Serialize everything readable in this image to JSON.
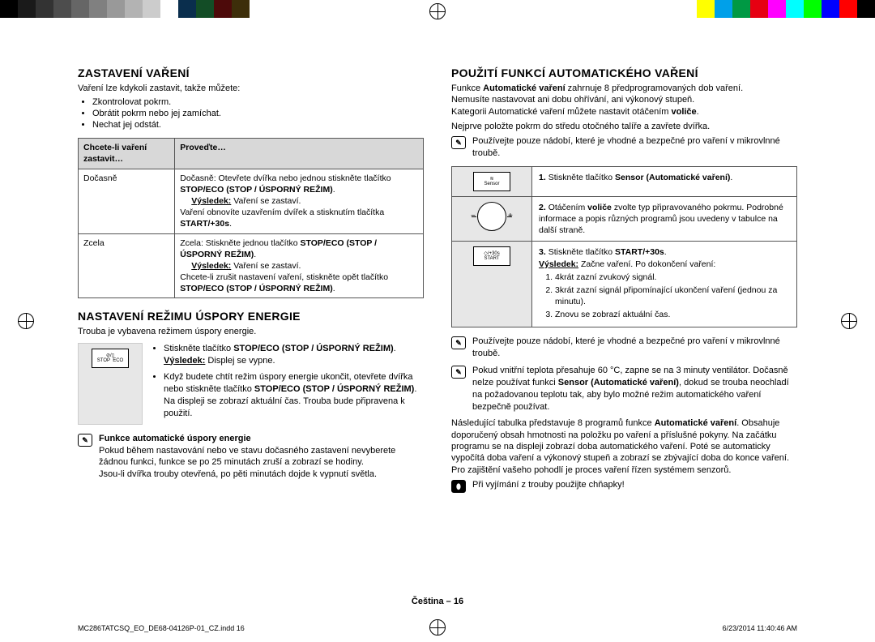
{
  "colorbar": {
    "left": [
      "#000000",
      "#1a1a1a",
      "#333333",
      "#4d4d4d",
      "#666666",
      "#808080",
      "#999999",
      "#b3b3b3",
      "#cccccc",
      "#ffffff",
      "#0a2e4d",
      "#134d26",
      "#4d0a0a",
      "#3d2e0a"
    ],
    "right": [
      "#ffff00",
      "#00a0e9",
      "#009944",
      "#e60012",
      "#ff00ff",
      "#00ffff",
      "#00ff00",
      "#0000ff",
      "#ff0000",
      "#000000"
    ]
  },
  "left": {
    "h1": "ZASTAVENÍ VAŘENÍ",
    "intro": "Vaření lze kdykoli zastavit, takže můžete:",
    "bullets": [
      "Zkontrolovat pokrm.",
      "Obrátit pokrm nebo jej zamíchat.",
      "Nechat jej odstát."
    ],
    "th1": "Chcete-li vaření zastavit…",
    "th2": "Proveďte…",
    "r1c1": "Dočasně",
    "r1c2a": "Dočasně: Otevřete dvířka nebo jednou stiskněte tlačítko ",
    "r1c2b": "STOP/ECO (STOP / ÚSPORNÝ REŽIM)",
    "r1res": "Výsledek:",
    "r1resv": " Vaření se zastaví.",
    "r1c2c": "Vaření obnovíte uzavřením dvířek a stisknutím tlačítka ",
    "r1c2d": "START/+30s",
    "r2c1": "Zcela",
    "r2c2a": "Zcela: Stiskněte jednou tlačítko ",
    "r2c2b": "STOP/ECO (STOP / ÚSPORNÝ REŽIM)",
    "r2res": "Výsledek:",
    "r2resv": " Vaření se zastaví.",
    "r2c2c": "Chcete-li zrušit nastavení vaření, stiskněte opět tlačítko ",
    "r2c2d": "STOP/ECO (STOP / ÚSPORNÝ REŽIM)",
    "h2": "NASTAVENÍ REŽIMU ÚSPORY ENERGIE",
    "energyIntro": "Trouba je vybavena režimem úspory energie.",
    "btn1": "⊘/▯\nSTOP  ECO",
    "e1a": "Stiskněte tlačítko ",
    "e1b": "STOP/ECO (STOP / ÚSPORNÝ REŽIM)",
    "e1res": "Výsledek:",
    "e1resv": " Displej se vypne.",
    "e2a": "Když budete chtít režim úspory energie ukončit, otevřete dvířka nebo stiskněte tlačítko ",
    "e2b": "STOP/ECO (STOP / ÚSPORNÝ REŽIM)",
    "e2c": ". Na displeji se zobrazí aktuální čas. Trouba bude připravena k použití.",
    "noteTitle": "Funkce automatické úspory energie",
    "note1": "Pokud během nastavování nebo ve stavu dočasného zastavení nevyberete žádnou funkci, funkce se po 25 minutách zruší a zobrazí se hodiny.",
    "note2": "Jsou-li dvířka trouby otevřená, po pěti minutách dojde k vypnutí světla."
  },
  "right": {
    "h1": "POUŽITÍ FUNKCÍ AUTOMATICKÉHO VAŘENÍ",
    "p1a": "Funkce ",
    "p1b": "Automatické vaření",
    "p1c": " zahrnuje 8 předprogramovaných dob vaření.",
    "p2": "Nemusíte nastavovat ani dobu ohřívání, ani výkonový stupeň.",
    "p3a": "Kategorii Automatické vaření můžete nastavit otáčením ",
    "p3b": "voliče",
    "p4": "Nejprve položte pokrm do středu otočného talíře a zavřete dvířka.",
    "note1": "Používejte pouze nádobí, které je vhodné a bezpečné pro vaření v mikrovlnné troubě.",
    "s1n": "1.",
    "s1a": "Stiskněte tlačítko ",
    "s1b": "Sensor (Automatické vaření)",
    "s1btn": "≋\nSensor",
    "s2n": "2.",
    "s2a": "Otáčením ",
    "s2b": "voliče",
    "s2c": " zvolte typ připravovaného pokrmu. Podrobné informace a popis různých programů jsou uvedeny v tabulce na další straně.",
    "s3n": "3.",
    "s3a": "Stiskněte tlačítko ",
    "s3b": "START/+30s",
    "s3btn": "◇/+30s\nSTART",
    "s3res": "Výsledek:",
    "s3resv": " Začne vaření. Po dokončení vaření:",
    "s3li1": "4krát zazní zvukový signál.",
    "s3li2": "3krát zazní signál připomínající ukončení vaření (jednou za minutu).",
    "s3li3": "Znovu se zobrazí aktuální čas.",
    "note2": "Používejte pouze nádobí, které je vhodné a bezpečné pro vaření v mikrovlnné troubě.",
    "note3a": "Pokud vnitřní teplota přesahuje 60 °C, zapne se na 3 minuty ventilátor. Dočasně nelze používat funkci ",
    "note3b": "Sensor (Automatické vaření)",
    "note3c": ", dokud se trouba neochladí na požadovanou teplotu tak, aby bylo možné režim automatického vaření bezpečně používat.",
    "p5a": "Následující tabulka představuje 8 programů funkce ",
    "p5b": "Automatické vaření",
    "p5c": ". Obsahuje doporučený obsah hmotnosti na položku po vaření a příslušné pokyny. Na začátku programu se na displeji zobrazí doba automatického vaření. Poté se automaticky vypočítá doba vaření a výkonový stupeň a zobrazí se zbývající doba do konce vaření. Pro zajištění vašeho pohodlí je proces vaření řízen systémem senzorů.",
    "note4": "Při vyjímání z trouby použijte chňapky!"
  },
  "footer": "Čeština – 16",
  "metaLeft": "MC286TATCSQ_EO_DE68-04126P-01_CZ.indd   16",
  "metaRight": "6/23/2014   11:40:46 AM"
}
